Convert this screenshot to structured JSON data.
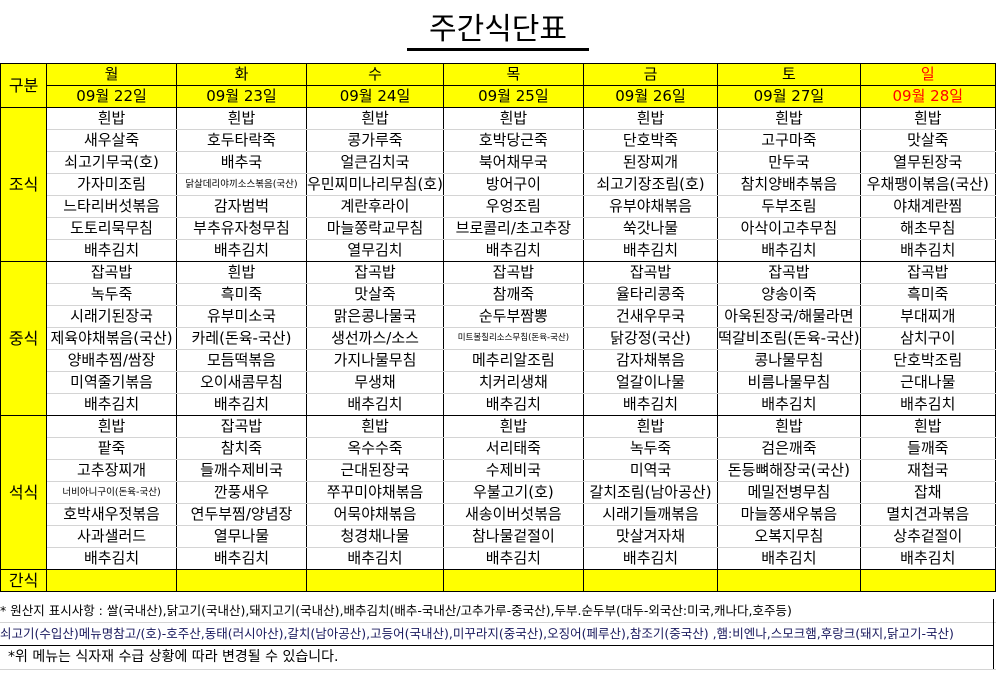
{
  "title": "주간식단표",
  "header": {
    "category_label": "구분",
    "days": [
      "월",
      "화",
      "수",
      "목",
      "금",
      "토",
      "일"
    ],
    "dates": [
      "09월 22일",
      "09월 23일",
      "09월 24일",
      "09월 25일",
      "09월 26일",
      "09월 27일",
      "09월 28일"
    ],
    "sunday_color": "#ff0000",
    "header_bg": "#ffff00"
  },
  "meals": [
    {
      "label": "조식",
      "days": [
        [
          "흰밥",
          "새우살죽",
          "쇠고기무국(호)",
          "가자미조림",
          "느타리버섯볶음",
          "도토리묵무침",
          "배추김치"
        ],
        [
          "흰밥",
          "호두타락죽",
          "배추국",
          "닭살데리야끼소스볶음(국산)",
          "감자범벅",
          "부추유자청무침",
          "배추김치"
        ],
        [
          "흰밥",
          "콩가루죽",
          "얼큰김치국",
          "우민찌미나리무침(호)",
          "계란후라이",
          "마늘쫑락교무침",
          "열무김치"
        ],
        [
          "흰밥",
          "호박당근죽",
          "북어채무국",
          "방어구이",
          "우엉조림",
          "브로콜리/초고추장",
          "배추김치"
        ],
        [
          "흰밥",
          "단호박죽",
          "된장찌개",
          "쇠고기장조림(호)",
          "유부야채볶음",
          "쑥갓나물",
          "배추김치"
        ],
        [
          "흰밥",
          "고구마죽",
          "만두국",
          "참치양배추볶음",
          "두부조림",
          "아삭이고추무침",
          "배추김치"
        ],
        [
          "흰밥",
          "맛살죽",
          "열무된장국",
          "우채팽이볶음(국산)",
          "야채계란찜",
          "해초무침",
          "배추김치"
        ]
      ]
    },
    {
      "label": "중식",
      "days": [
        [
          "잡곡밥",
          "녹두죽",
          "시래기된장국",
          "제육야채볶음(국산)",
          "양배추찜/쌈장",
          "미역줄기볶음",
          "배추김치"
        ],
        [
          "흰밥",
          "흑미죽",
          "유부미소국",
          "카레(돈육-국산)",
          "모듬떡볶음",
          "오이새콤무침",
          "배추김치"
        ],
        [
          "잡곡밥",
          "맛살죽",
          "맑은콩나물국",
          "생선까스/소스",
          "가지나물무침",
          "무생채",
          "배추김치"
        ],
        [
          "잡곡밥",
          "참깨죽",
          "순두부짬뽕",
          "미트볼칠리소스무침(돈육-국산)",
          "메추리알조림",
          "치커리생채",
          "배추김치"
        ],
        [
          "잡곡밥",
          "율타리콩죽",
          "건새우무국",
          "닭강정(국산)",
          "감자채볶음",
          "얼갈이나물",
          "배추김치"
        ],
        [
          "잡곡밥",
          "양송이죽",
          "아욱된장국/해물라면",
          "떡갈비조림(돈육-국산)",
          "콩나물무침",
          "비름나물무침",
          "배추김치"
        ],
        [
          "잡곡밥",
          "흑미죽",
          "부대찌개",
          "삼치구이",
          "단호박조림",
          "근대나물",
          "배추김치"
        ]
      ]
    },
    {
      "label": "석식",
      "days": [
        [
          "흰밥",
          "팥죽",
          "고추장찌개",
          "너비아니구이(돈육-국산)",
          "호박새우젓볶음",
          "사과샐러드",
          "배추김치"
        ],
        [
          "잡곡밥",
          "참치죽",
          "들깨수제비국",
          "깐풍새우",
          "연두부찜/양념장",
          "열무나물",
          "배추김치"
        ],
        [
          "흰밥",
          "옥수수죽",
          "근대된장국",
          "쭈꾸미야채볶음",
          "어묵야채볶음",
          "청경채나물",
          "배추김치"
        ],
        [
          "흰밥",
          "서리태죽",
          "수제비국",
          "우불고기(호)",
          "새송이버섯볶음",
          "참나물겉절이",
          "배추김치"
        ],
        [
          "흰밥",
          "녹두죽",
          "미역국",
          "갈치조림(남아공산)",
          "시래기들깨볶음",
          "맛살겨자채",
          "배추김치"
        ],
        [
          "흰밥",
          "검은깨죽",
          "돈등뼈해장국(국산)",
          "메밀전병무침",
          "마늘쫑새우볶음",
          "오복지무침",
          "배추김치"
        ],
        [
          "흰밥",
          "들깨죽",
          "재첩국",
          "잡채",
          "멸치견과볶음",
          "상추겉절이",
          "배추김치"
        ]
      ]
    }
  ],
  "snack": {
    "label": "간식"
  },
  "notes": [
    "* 원산지 표시사항 : 쌀(국내산),닭고기(국내산),돼지고기(국내산),배추김치(배추-국내산/고추가루-중국산),두부.순두부(대두-외국산:미국,캐나다,호주등)",
    "쇠고기(수입산)메뉴명참고/(호)-호주산,동태(러시아산),갈치(남아공산),고등어(국내산),미꾸라지(중국산),오징어(페루산),참조기(중국산) ,햄:비엔나,스모크햄,후랑크(돼지,닭고기-국산)",
    "*위 메뉴는 식자재 수급 상황에 따라 변경될 수 있습니다."
  ]
}
